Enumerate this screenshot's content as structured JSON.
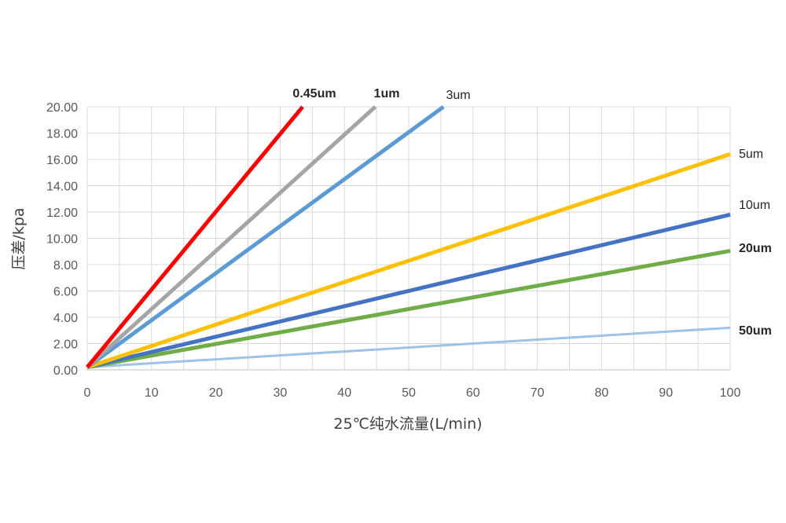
{
  "chart_data": {
    "type": "line",
    "title": "",
    "xlabel": "25℃纯水流量(L/min)",
    "ylabel": "压差/kpa",
    "xlim": [
      0,
      100
    ],
    "ylim": [
      0,
      20
    ],
    "x_ticks": [
      "0",
      "10",
      "20",
      "30",
      "40",
      "50",
      "60",
      "70",
      "80",
      "90",
      "100"
    ],
    "y_ticks": [
      "0.00",
      "2.00",
      "4.00",
      "6.00",
      "8.00",
      "10.00",
      "12.00",
      "14.00",
      "16.00",
      "18.00",
      "20.00"
    ],
    "grid": true,
    "legend": "none",
    "series": [
      {
        "name": "0.45um",
        "color": "#FF0000",
        "x": [
          0,
          33.5
        ],
        "y": [
          0.2,
          20.0
        ]
      },
      {
        "name": "1um",
        "color": "#A5A5A5",
        "x": [
          0,
          44.8
        ],
        "y": [
          0.2,
          20.0
        ]
      },
      {
        "name": "3um",
        "color": "#5B9BD5",
        "x": [
          0,
          55.4
        ],
        "y": [
          0.2,
          20.0
        ]
      },
      {
        "name": "5um",
        "color": "#FFC000",
        "x": [
          0,
          100
        ],
        "y": [
          0.2,
          16.4
        ]
      },
      {
        "name": "10um",
        "color": "#4472C4",
        "x": [
          0,
          100
        ],
        "y": [
          0.2,
          11.8
        ]
      },
      {
        "name": "20um",
        "color": "#70AD47",
        "x": [
          0,
          100
        ],
        "y": [
          0.2,
          9.05
        ]
      },
      {
        "name": "50um",
        "color": "#9DC3E6",
        "x": [
          0,
          100
        ],
        "y": [
          0.2,
          3.2
        ]
      }
    ]
  }
}
